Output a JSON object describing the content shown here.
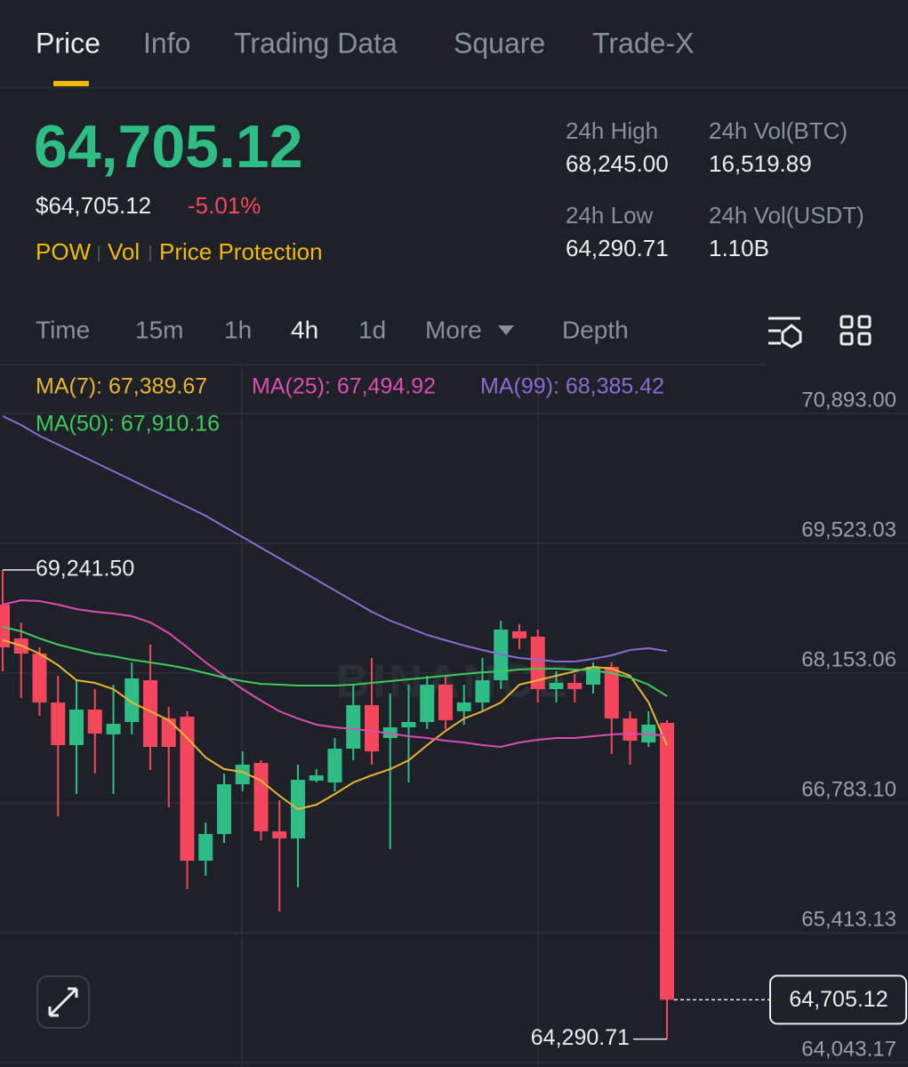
{
  "tabs": [
    "Price",
    "Info",
    "Trading Data",
    "Square",
    "Trade-X"
  ],
  "price": {
    "last": "64,705.12",
    "fiat": "$64,705.12",
    "change": "-5.01%"
  },
  "tags": [
    "POW",
    "Vol",
    "Price Protection"
  ],
  "stats": [
    {
      "label": "24h High",
      "value": "68,245.00"
    },
    {
      "label": "24h Vol(BTC)",
      "value": "16,519.89"
    },
    {
      "label": "24h Low",
      "value": "64,290.71"
    },
    {
      "label": "24h Vol(USDT)",
      "value": "1.10B"
    }
  ],
  "intervals": [
    "Time",
    "15m",
    "1h",
    "4h",
    "1d",
    "More",
    "Depth"
  ],
  "chart_data": {
    "type": "candlestick",
    "watermark": "BINANCE",
    "ylim": [
      63996,
      71400
    ],
    "yticks": [
      {
        "value": 70893.0,
        "label": "70,893.00"
      },
      {
        "value": 69523.03,
        "label": "69,523.03"
      },
      {
        "value": 68153.06,
        "label": "68,153.06"
      },
      {
        "value": 66783.1,
        "label": "66,783.10"
      },
      {
        "value": 65413.13,
        "label": "65,413.13"
      },
      {
        "value": 64043.17,
        "label": "64,043.17"
      }
    ],
    "up_color": "#2ebd85",
    "down_color": "#f6465d",
    "open": [
      68876,
      68519,
      68359,
      67843,
      67393,
      67768,
      67506,
      67637,
      68078,
      67674,
      67693,
      66173,
      66455,
      66980,
      67205,
      66483,
      66408,
      67018,
      66999,
      67355,
      67815,
      67468,
      67581,
      67637,
      68031,
      67750,
      67843,
      68078,
      68594,
      68538,
      67984,
      68050,
      68031,
      68219,
      67674,
      67421,
      67628
    ],
    "high": [
      69241.5,
      68688,
      68425,
      68125,
      68078,
      67984,
      68031,
      68266,
      68453,
      67796,
      67750,
      66577,
      67093,
      67327,
      67233,
      66811,
      67187,
      67140,
      67468,
      68031,
      68313,
      67937,
      68031,
      68125,
      68125,
      68031,
      68313,
      68707,
      68669,
      68613,
      68172,
      68144,
      68266,
      68266,
      67750,
      67750,
      67656
    ],
    "low": [
      68172,
      67890,
      67703,
      66642,
      66877,
      67093,
      66877,
      67506,
      67130,
      66736,
      65873,
      66014,
      66361,
      66905,
      66389,
      65638,
      65892,
      66999,
      66905,
      67233,
      67187,
      66295,
      66999,
      67562,
      67562,
      67609,
      67750,
      67984,
      68406,
      67843,
      67843,
      67843,
      67937,
      67299,
      67187,
      67374,
      64290.71
    ],
    "close": [
      68425,
      68359,
      67843,
      67393,
      67768,
      67515,
      67618,
      68097,
      67374,
      67374,
      66173,
      66455,
      66980,
      67187,
      66483,
      66408,
      67027,
      67074,
      67355,
      67815,
      67327,
      67581,
      67637,
      68031,
      67656,
      67843,
      68078,
      68613,
      68519,
      67984,
      68050,
      67984,
      68219,
      67674,
      67440,
      67609,
      64705.12
    ],
    "ma": [
      {
        "legend": "MA(7): 67,389.67",
        "color": "#e9b434",
        "values": [
          68500,
          68444,
          68359,
          68237,
          68078,
          68050,
          67984,
          67843,
          67750,
          67656,
          67468,
          67262,
          67140,
          67111,
          67018,
          66858,
          66717,
          66764,
          66877,
          66999,
          67074,
          67140,
          67233,
          67393,
          67543,
          67674,
          67750,
          67843,
          68031,
          68078,
          68125,
          68172,
          68219,
          68200,
          68125,
          67843,
          67389.67
        ]
      },
      {
        "legend": "MA(25): 67,494.92",
        "color": "#dd4cb2",
        "values": [
          68876,
          68922,
          68913,
          68876,
          68829,
          68801,
          68782,
          68754,
          68688,
          68575,
          68425,
          68266,
          68125,
          67984,
          67862,
          67750,
          67674,
          67609,
          67581,
          67562,
          67543,
          67515,
          67487,
          67468,
          67440,
          67421,
          67393,
          67374,
          67421,
          67449,
          67468,
          67468,
          67487,
          67506,
          67515,
          67506,
          67494.92
        ]
      },
      {
        "legend": "MA(99): 68,385.42",
        "color": "#8c6ad6",
        "values": [
          70865,
          70771,
          70658,
          70565,
          70471,
          70377,
          70283,
          70189,
          70095,
          70002,
          69908,
          69814,
          69701,
          69589,
          69476,
          69364,
          69251,
          69138,
          69026,
          68913,
          68801,
          68707,
          68632,
          68556,
          68500,
          68444,
          68397,
          68350,
          68313,
          68294,
          68275,
          68275,
          68303,
          68341,
          68397,
          68416,
          68385.42
        ]
      },
      {
        "legend": "MA(50): 67,910.16",
        "color": "#3ec95c",
        "values": [
          68641,
          68594,
          68519,
          68453,
          68406,
          68359,
          68331,
          68294,
          68266,
          68237,
          68200,
          68153,
          68106,
          68069,
          68040,
          68031,
          68022,
          68022,
          68022,
          68031,
          68050,
          68069,
          68087,
          68106,
          68125,
          68144,
          68162,
          68172,
          68191,
          68200,
          68200,
          68191,
          68181,
          68153,
          68106,
          68031,
          67910.16
        ]
      }
    ],
    "high_marker": {
      "value": 69241.5,
      "label": "69,241.50"
    },
    "low_marker": {
      "value": 64290.71,
      "label": "64,290.71"
    },
    "last_marker": {
      "value": 64705.12,
      "label": "64,705.12"
    }
  }
}
